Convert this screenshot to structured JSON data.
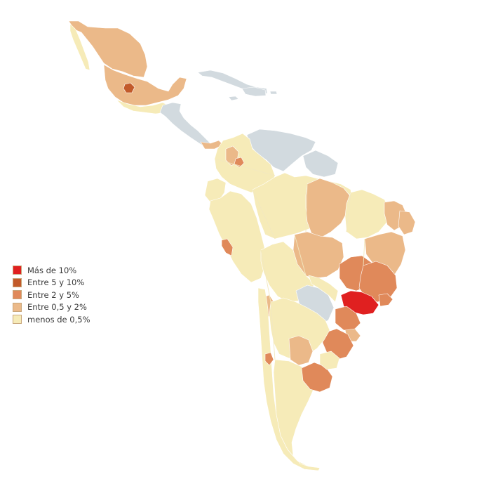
{
  "legend": {
    "items": [
      {
        "label": "Más de 10%",
        "color": "#e02020"
      },
      {
        "label": "Entre 5 y 10%",
        "color": "#c25a2a"
      },
      {
        "label": "Entre 2 y 5%",
        "color": "#e0895a"
      },
      {
        "label": "Entre 0,5 y 2%",
        "color": "#ebb989"
      },
      {
        "label": "menos de 0,5%",
        "color": "#f6ebb8"
      }
    ]
  },
  "colors": {
    "no_data": "#d2dadf",
    "over_10": "#e02020",
    "from_5_to_10": "#c25a2a",
    "from_2_to_5": "#e0895a",
    "from_05_to_2": "#ebb989",
    "under_05": "#f6ebb8"
  }
}
